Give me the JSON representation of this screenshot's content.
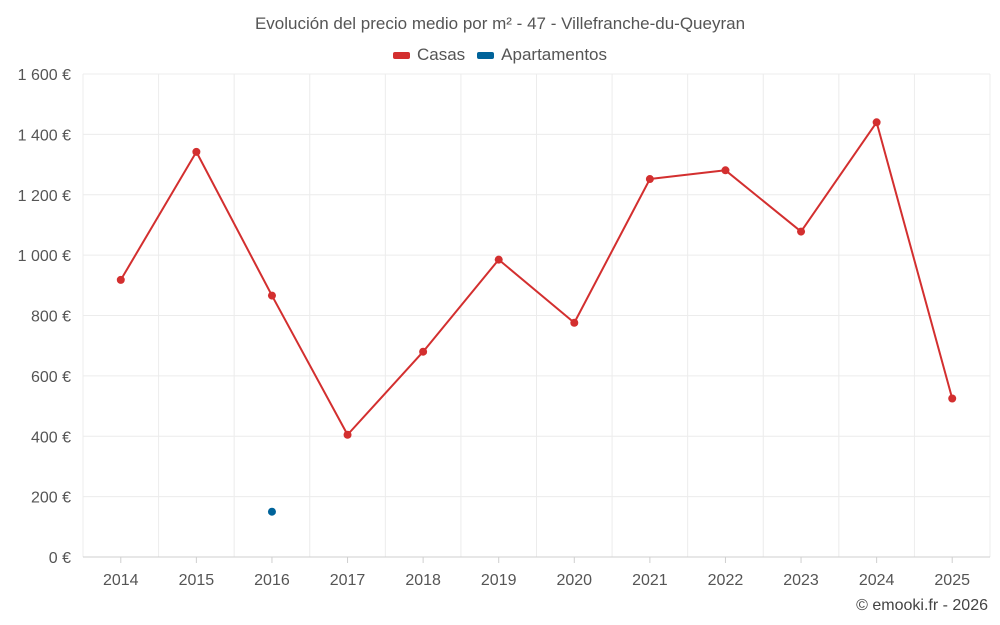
{
  "chart_data": {
    "type": "line",
    "title": "Evolución del precio medio por m² - 47 - Villefranche-du-Queyran",
    "categories": [
      "2014",
      "2015",
      "2016",
      "2017",
      "2018",
      "2019",
      "2020",
      "2021",
      "2022",
      "2023",
      "2024",
      "2025"
    ],
    "series": [
      {
        "name": "Casas",
        "color": "#d32f2f",
        "values": [
          918,
          1342,
          866,
          405,
          680,
          985,
          776,
          1252,
          1281,
          1078,
          1440,
          525
        ]
      },
      {
        "name": "Apartamentos",
        "color": "#00639a",
        "values": [
          null,
          null,
          150,
          null,
          null,
          null,
          null,
          null,
          null,
          null,
          null,
          null
        ]
      }
    ],
    "ylim": [
      0,
      1600
    ],
    "yticks": [
      0,
      200,
      400,
      600,
      800,
      1000,
      1200,
      1400,
      1600
    ],
    "ytick_labels": [
      "0 €",
      "200 €",
      "400 €",
      "600 €",
      "800 €",
      "1 000 €",
      "1 200 €",
      "1 400 €",
      "1 600 €"
    ],
    "xlabel": "",
    "ylabel": "",
    "grid": true,
    "legend_position": "top-center"
  },
  "credit": "© emooki.fr - 2026"
}
